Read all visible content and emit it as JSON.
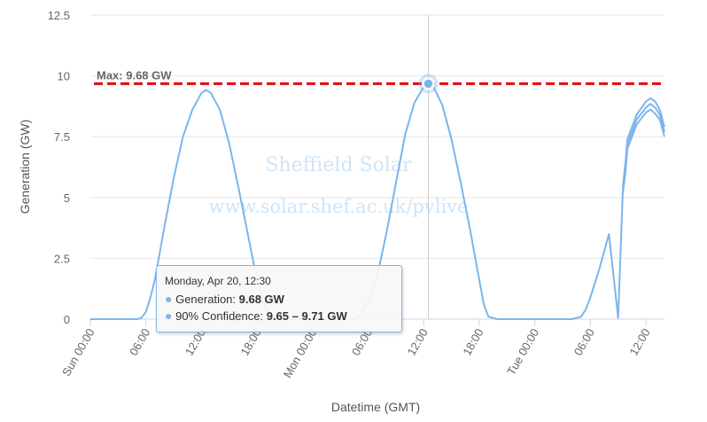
{
  "chart_data": {
    "type": "line",
    "title": "",
    "xlabel": "Datetime (GMT)",
    "ylabel": "Generation (GW)",
    "ylim": [
      0,
      12.5
    ],
    "xlim": [
      0,
      62
    ],
    "x_units": "hours since Sun 00:00",
    "yticks": [
      "0",
      "2.5",
      "5",
      "7.5",
      "10",
      "12.5"
    ],
    "ytick_values": [
      0,
      2.5,
      5,
      7.5,
      10,
      12.5
    ],
    "xticks": [
      {
        "x": 0,
        "label": "Sun 00:00"
      },
      {
        "x": 6,
        "label": "06:00"
      },
      {
        "x": 12,
        "label": "12:00"
      },
      {
        "x": 18,
        "label": "18:00"
      },
      {
        "x": 24,
        "label": "Mon 00:00"
      },
      {
        "x": 30,
        "label": "06:00"
      },
      {
        "x": 36,
        "label": "12:00"
      },
      {
        "x": 42,
        "label": "18:00"
      },
      {
        "x": 48,
        "label": "Tue 00:00"
      },
      {
        "x": 54,
        "label": "06:00"
      },
      {
        "x": 60,
        "label": "12:00"
      }
    ],
    "series": [
      {
        "name": "Generation",
        "color": "#7cb5ec",
        "x": [
          0,
          5,
          5.5,
          6,
          6.5,
          7,
          8,
          9,
          10,
          11,
          12,
          12.5,
          13,
          14,
          15,
          16,
          17,
          18,
          18.5,
          19,
          20,
          24,
          28.5,
          29,
          30,
          31,
          32,
          33,
          34,
          35,
          36,
          36.5,
          37,
          38,
          39,
          40,
          41,
          42,
          42.5,
          43,
          44,
          48,
          52,
          53,
          53.5,
          54,
          55,
          56,
          57,
          57.5,
          57.8,
          58,
          59,
          60,
          60.5,
          61,
          61.5,
          62
        ],
        "values": [
          0,
          0,
          0.05,
          0.3,
          0.9,
          1.7,
          3.8,
          5.8,
          7.5,
          8.6,
          9.3,
          9.42,
          9.3,
          8.6,
          7.2,
          5.4,
          3.5,
          1.6,
          0.9,
          0.4,
          0,
          0,
          0,
          0.1,
          0.7,
          1.8,
          3.6,
          5.6,
          7.6,
          8.9,
          9.55,
          9.68,
          9.6,
          8.8,
          7.4,
          5.6,
          3.7,
          1.6,
          0.6,
          0.1,
          0,
          0,
          0,
          0.1,
          0.4,
          0.9,
          2.1,
          3.5,
          0.05,
          5.3,
          6.3,
          7.2,
          8.2,
          8.7,
          8.85,
          8.7,
          8.4,
          7.7
        ]
      },
      {
        "name": "90% Confidence upper",
        "color": "#7cb5ec",
        "x": [
          57.5,
          57.8,
          58,
          59,
          60,
          60.5,
          61,
          61.5,
          62
        ],
        "values": [
          5.45,
          6.5,
          7.4,
          8.4,
          8.95,
          9.08,
          8.95,
          8.6,
          7.9
        ]
      },
      {
        "name": "90% Confidence lower",
        "color": "#7cb5ec",
        "x": [
          57.5,
          57.8,
          58,
          59,
          60,
          60.5,
          61,
          61.5,
          62
        ],
        "values": [
          5.15,
          6.1,
          7.0,
          8.0,
          8.5,
          8.62,
          8.45,
          8.2,
          7.5
        ]
      }
    ],
    "max_line": {
      "value": 9.68,
      "label": "Max: 9.68 GW",
      "color": "#e8000b"
    },
    "crosshair_x": 36.5,
    "highlight_point": {
      "x": 36.5,
      "y": 9.68
    },
    "watermark": {
      "line1": "Sheffield Solar",
      "line2": "www.solar.shef.ac.uk/pvlive"
    },
    "tooltip": {
      "header": "Monday, Apr 20, 12:30",
      "gen_label": "Generation: ",
      "gen_value": "9.68 GW",
      "conf_label": "90% Confidence: ",
      "conf_value": "9.65 – 9.71 GW"
    }
  }
}
